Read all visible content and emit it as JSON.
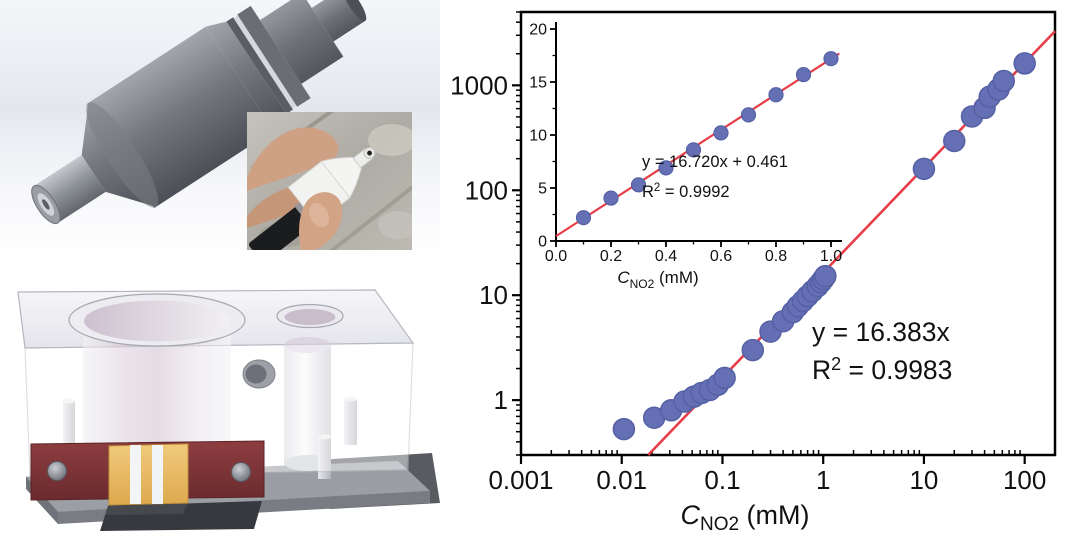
{
  "chart_data": [
    {
      "id": "main_calibration_plot",
      "type": "scatter",
      "x_scale": "log",
      "y_scale": "log",
      "xlim": [
        0.001,
        200
      ],
      "ylim": [
        0.3,
        5000
      ],
      "grid": false,
      "legend": "none",
      "xlabel": {
        "symbol": "C",
        "subscript": "NO2",
        "rest": " (mM)"
      },
      "x_ticks": [
        {
          "value": 0.001,
          "label": "0.001"
        },
        {
          "value": 0.01,
          "label": "0.01"
        },
        {
          "value": 0.1,
          "label": "0.1"
        },
        {
          "value": 1,
          "label": "1"
        },
        {
          "value": 10,
          "label": "10"
        },
        {
          "value": 100,
          "label": "100"
        }
      ],
      "y_ticks": [
        {
          "value": 1,
          "label": "1"
        },
        {
          "value": 10,
          "label": "10"
        },
        {
          "value": 100,
          "label": "100"
        },
        {
          "value": 1000,
          "label": "1000"
        }
      ],
      "points": [
        [
          0.0105,
          0.53
        ],
        [
          0.021,
          0.68
        ],
        [
          0.031,
          0.8
        ],
        [
          0.042,
          0.97
        ],
        [
          0.052,
          1.08
        ],
        [
          0.062,
          1.17
        ],
        [
          0.075,
          1.25
        ],
        [
          0.09,
          1.4
        ],
        [
          0.105,
          1.63
        ],
        [
          0.2,
          3.0
        ],
        [
          0.3,
          4.5
        ],
        [
          0.4,
          5.65
        ],
        [
          0.5,
          6.9
        ],
        [
          0.56,
          7.85
        ],
        [
          0.63,
          8.8
        ],
        [
          0.7,
          9.8
        ],
        [
          0.78,
          10.9
        ],
        [
          0.88,
          12.2
        ],
        [
          0.95,
          13.3
        ],
        [
          1.0,
          14.2
        ],
        [
          1.05,
          15.2
        ],
        [
          10,
          160
        ],
        [
          20,
          295
        ],
        [
          30,
          505
        ],
        [
          40,
          610
        ],
        [
          45,
          780
        ],
        [
          55,
          915
        ],
        [
          62,
          1100
        ],
        [
          100,
          1620
        ]
      ],
      "fit": {
        "slope": 16.383,
        "intercept": 0,
        "equation": "y = 16.383x",
        "r2_base": "R",
        "r2_exponent": "2",
        "r2_rest": " = 0.9983"
      },
      "colors": {
        "marker": "#6570b4",
        "marker_edge": "#5560a5",
        "line": "#e63d48",
        "axis": "#000000"
      }
    },
    {
      "id": "inset_linear_plot",
      "type": "scatter",
      "x_scale": "linear",
      "y_scale": "linear",
      "xlim": [
        0,
        1.04
      ],
      "ylim": [
        0,
        20
      ],
      "grid": false,
      "legend": "none",
      "xlabel": {
        "symbol": "C",
        "subscript": "NO2",
        "rest": " (mM)"
      },
      "x_ticks": [
        {
          "value": 0.0,
          "label": "0.0"
        },
        {
          "value": 0.2,
          "label": "0.2"
        },
        {
          "value": 0.4,
          "label": "0.4"
        },
        {
          "value": 0.6,
          "label": "0.6"
        },
        {
          "value": 0.8,
          "label": "0.8"
        },
        {
          "value": 1.0,
          "label": "1.0"
        }
      ],
      "y_ticks": [
        {
          "value": 0,
          "label": "0"
        },
        {
          "value": 5,
          "label": "5"
        },
        {
          "value": 10,
          "label": "10"
        },
        {
          "value": 15,
          "label": "15"
        },
        {
          "value": 20,
          "label": "20"
        }
      ],
      "points": [
        [
          0.1,
          2.2
        ],
        [
          0.2,
          4.05
        ],
        [
          0.3,
          5.3
        ],
        [
          0.4,
          6.9
        ],
        [
          0.5,
          8.6
        ],
        [
          0.6,
          10.2
        ],
        [
          0.7,
          11.9
        ],
        [
          0.8,
          13.8
        ],
        [
          0.9,
          15.7
        ],
        [
          1.0,
          17.2
        ]
      ],
      "fit": {
        "slope": 16.72,
        "intercept": 0.461,
        "equation": "y = 16.720x + 0.461",
        "r2_base": "R",
        "r2_exponent": "2",
        "r2_rest": " = 0.9992"
      },
      "colors": {
        "marker": "#6570b4",
        "marker_edge": "#5560a5",
        "line": "#e63d48",
        "axis": "#000000"
      }
    }
  ]
}
